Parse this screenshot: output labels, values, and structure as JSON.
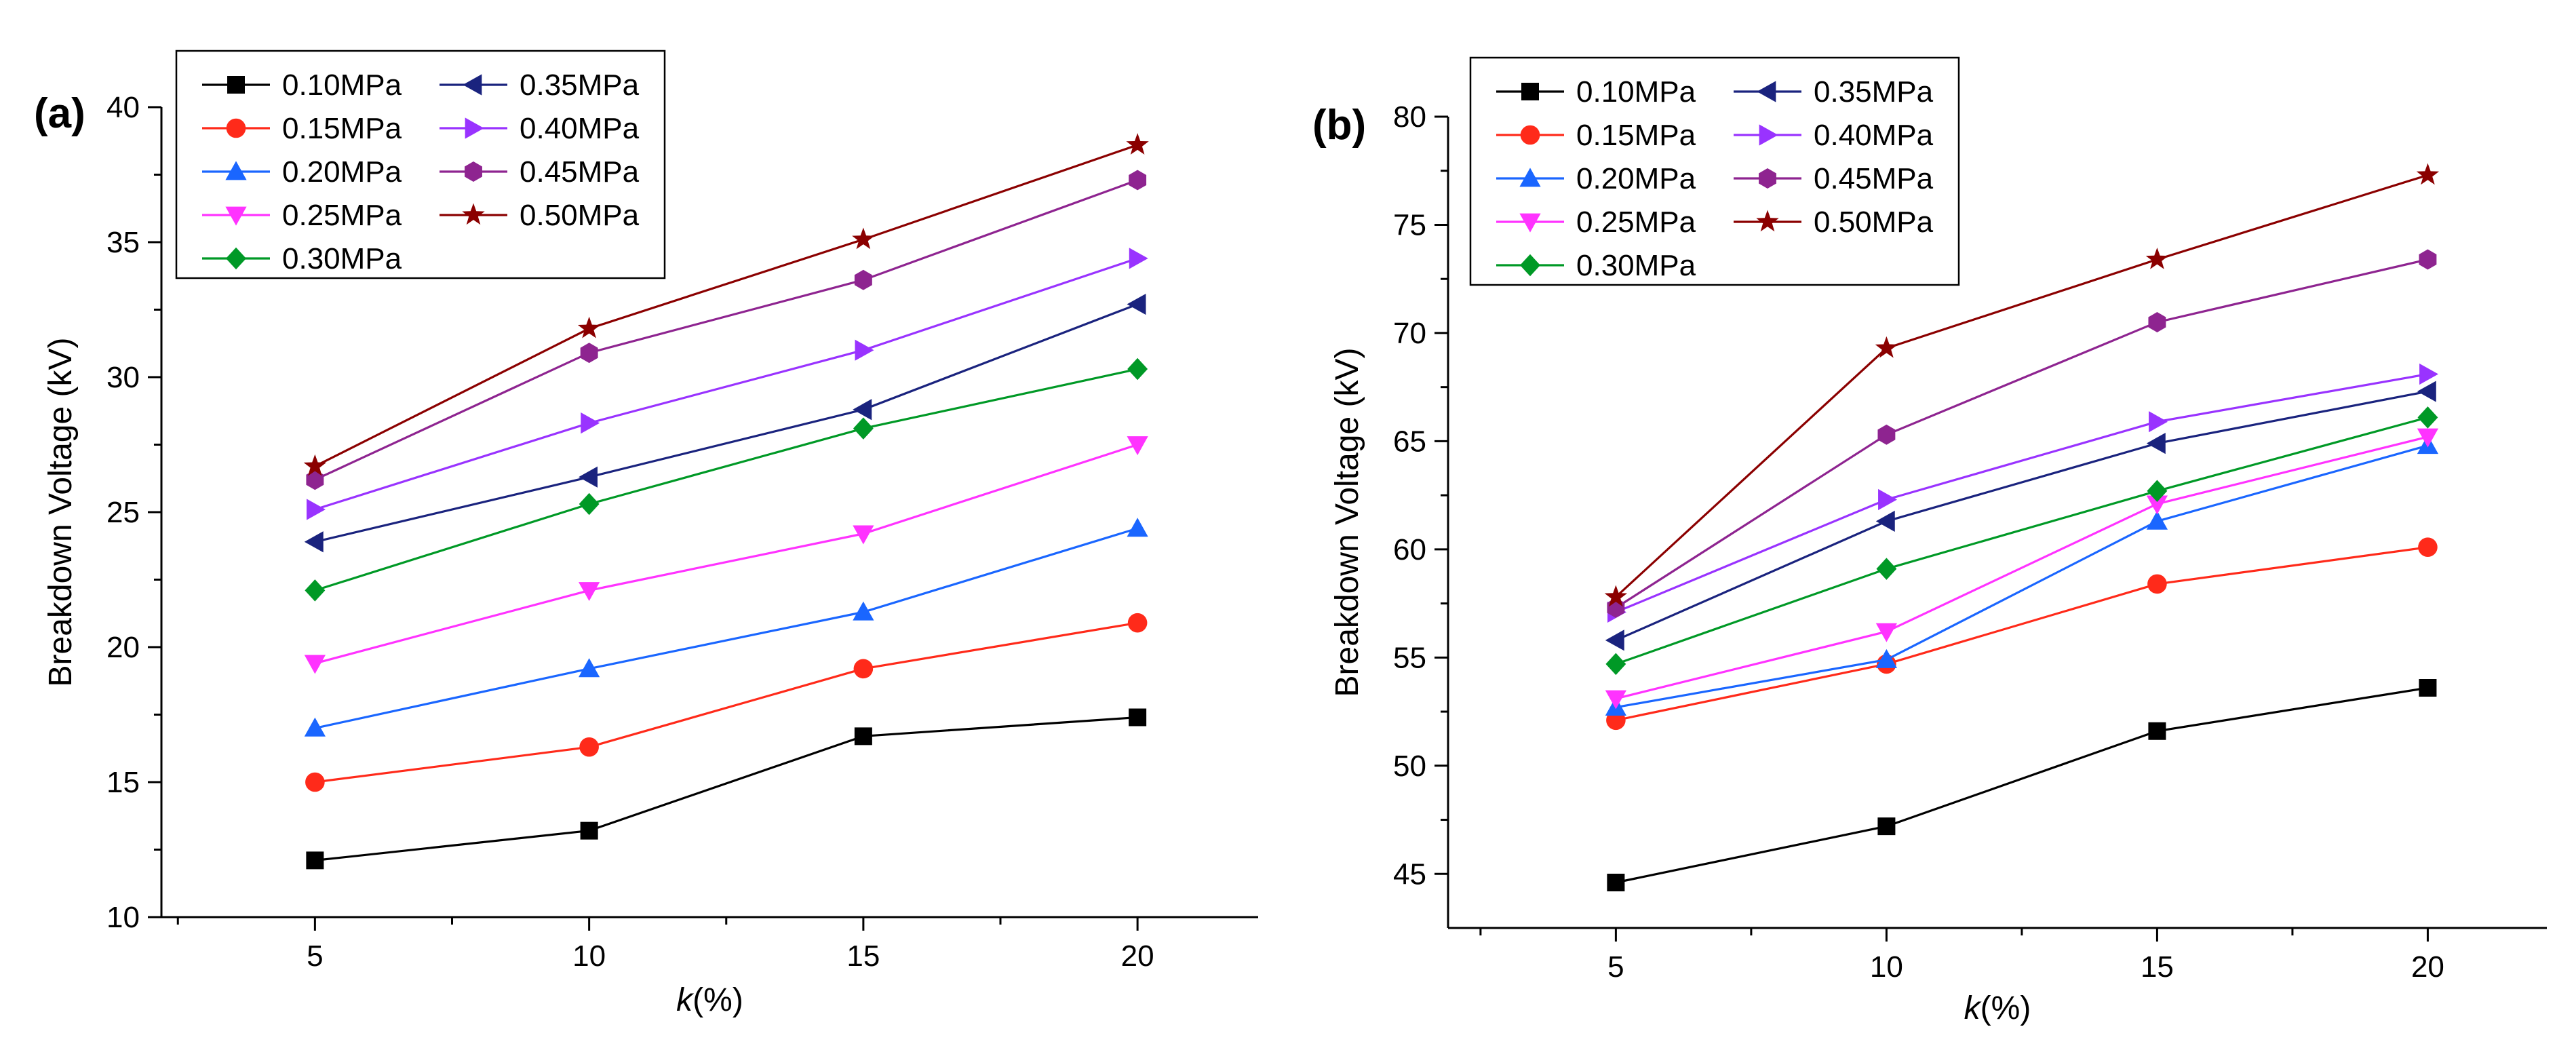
{
  "chart_data": [
    {
      "type": "line",
      "panel_label": "(a)",
      "xlabel_italic": "k",
      "xlabel_rest": "(%)",
      "ylabel": "Breakdown Voltage (kV)",
      "x": [
        5,
        10,
        15,
        20
      ],
      "xticks": [
        5,
        10,
        15,
        20
      ],
      "xlim": [
        2.2,
        22.2
      ],
      "ylim": [
        10,
        40
      ],
      "yticks": [
        10,
        15,
        20,
        25,
        30,
        35,
        40
      ],
      "grid": false,
      "legend_position": "top-left",
      "series": [
        {
          "name": "0.10MPa",
          "color": "#000000",
          "marker": "square",
          "values": [
            12.1,
            13.2,
            16.7,
            17.4
          ]
        },
        {
          "name": "0.15MPa",
          "color": "#ff2a1a",
          "marker": "circle",
          "values": [
            15.0,
            16.3,
            19.2,
            20.9
          ]
        },
        {
          "name": "0.20MPa",
          "color": "#1a66ff",
          "marker": "triangle-up",
          "values": [
            17.0,
            19.2,
            21.3,
            24.4
          ]
        },
        {
          "name": "0.25MPa",
          "color": "#ff33ff",
          "marker": "triangle-down",
          "values": [
            19.4,
            22.1,
            24.2,
            27.5
          ]
        },
        {
          "name": "0.30MPa",
          "color": "#009926",
          "marker": "diamond",
          "values": [
            22.1,
            25.3,
            28.1,
            30.3
          ]
        },
        {
          "name": "0.35MPa",
          "color": "#1a237e",
          "marker": "triangle-left",
          "values": [
            23.9,
            26.3,
            28.8,
            32.7
          ]
        },
        {
          "name": "0.40MPa",
          "color": "#9933ff",
          "marker": "triangle-right",
          "values": [
            25.1,
            28.3,
            31.0,
            34.4
          ]
        },
        {
          "name": "0.45MPa",
          "color": "#8e2490",
          "marker": "hexagon",
          "values": [
            26.2,
            30.9,
            33.6,
            37.3
          ]
        },
        {
          "name": "0.50MPa",
          "color": "#8b0000",
          "marker": "star",
          "values": [
            26.7,
            31.8,
            35.1,
            38.6
          ]
        }
      ]
    },
    {
      "type": "line",
      "panel_label": "(b)",
      "xlabel_italic": "k",
      "xlabel_rest": "(%)",
      "ylabel": "Breakdown Voltage (kV)",
      "x": [
        5,
        10,
        15,
        20
      ],
      "xticks": [
        5,
        10,
        15,
        20
      ],
      "xlim": [
        1.9,
        22.2
      ],
      "ylim": [
        42.5,
        80
      ],
      "yticks": [
        45,
        50,
        55,
        60,
        65,
        70,
        75,
        80
      ],
      "grid": false,
      "legend_position": "top-left",
      "series": [
        {
          "name": "0.10MPa",
          "color": "#000000",
          "marker": "square",
          "values": [
            44.6,
            47.2,
            51.6,
            53.6
          ]
        },
        {
          "name": "0.15MPa",
          "color": "#ff2a1a",
          "marker": "circle",
          "values": [
            52.1,
            54.7,
            58.4,
            60.1
          ]
        },
        {
          "name": "0.20MPa",
          "color": "#1a66ff",
          "marker": "triangle-up",
          "values": [
            52.7,
            54.9,
            61.3,
            64.8
          ]
        },
        {
          "name": "0.25MPa",
          "color": "#ff33ff",
          "marker": "triangle-down",
          "values": [
            53.1,
            56.2,
            62.1,
            65.2
          ]
        },
        {
          "name": "0.30MPa",
          "color": "#009926",
          "marker": "diamond",
          "values": [
            54.7,
            59.1,
            62.7,
            66.1
          ]
        },
        {
          "name": "0.35MPa",
          "color": "#1a237e",
          "marker": "triangle-left",
          "values": [
            55.8,
            61.3,
            64.9,
            67.3
          ]
        },
        {
          "name": "0.40MPa",
          "color": "#9933ff",
          "marker": "triangle-right",
          "values": [
            57.1,
            62.3,
            65.9,
            68.1
          ]
        },
        {
          "name": "0.45MPa",
          "color": "#8e2490",
          "marker": "hexagon",
          "values": [
            57.3,
            65.3,
            70.5,
            73.4
          ]
        },
        {
          "name": "0.50MPa",
          "color": "#8b0000",
          "marker": "star",
          "values": [
            57.8,
            69.3,
            73.4,
            77.3
          ]
        }
      ]
    }
  ]
}
